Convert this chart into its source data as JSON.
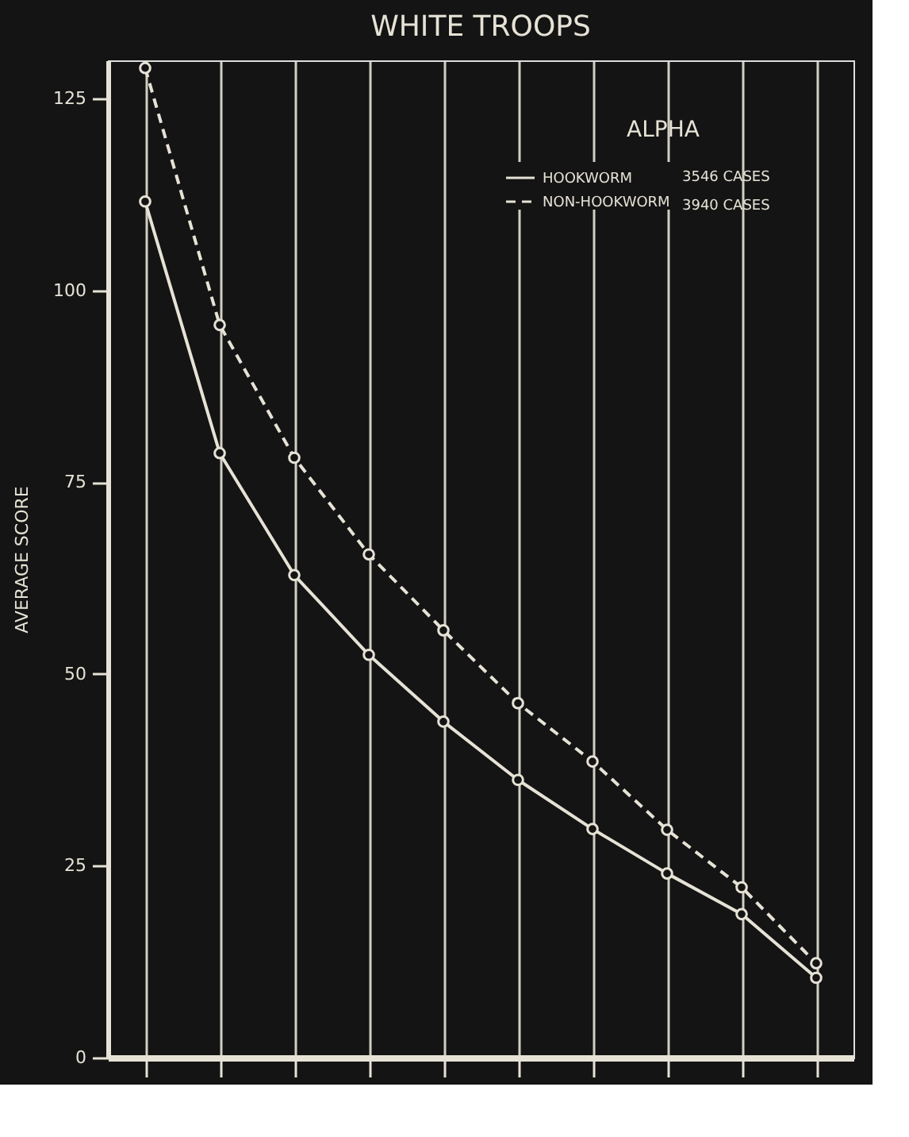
{
  "chart_data": {
    "type": "line",
    "title": "WHITE TROOPS",
    "subtitle": "ALPHA",
    "ylabel": "AVERAGE SCORE",
    "categories": [
      null,
      null,
      null,
      null,
      null,
      null,
      null,
      null,
      null,
      null
    ],
    "series": [
      {
        "name": "HOOKWORM",
        "color": "#e6e2d6",
        "line_style": "solid",
        "values": [
          111.6,
          78.8,
          62.9,
          52.5,
          43.8,
          36.2,
          29.8,
          24.0,
          18.7,
          10.4
        ]
      },
      {
        "name": "NON-HOOKWORM",
        "color": "#e6e2d6",
        "line_style": "dashed",
        "values": [
          129,
          95.5,
          78.2,
          65.6,
          55.7,
          46.2,
          38.6,
          29.7,
          22.2,
          12.3
        ]
      }
    ],
    "annotations": [
      "3546 CASES",
      "3940 CASES"
    ],
    "ylim": [
      0,
      130
    ],
    "yticks": [
      0,
      25,
      50,
      75,
      100,
      125
    ],
    "grid": "x",
    "legend": "top right",
    "marker": "circle",
    "tick_labels": "y"
  }
}
